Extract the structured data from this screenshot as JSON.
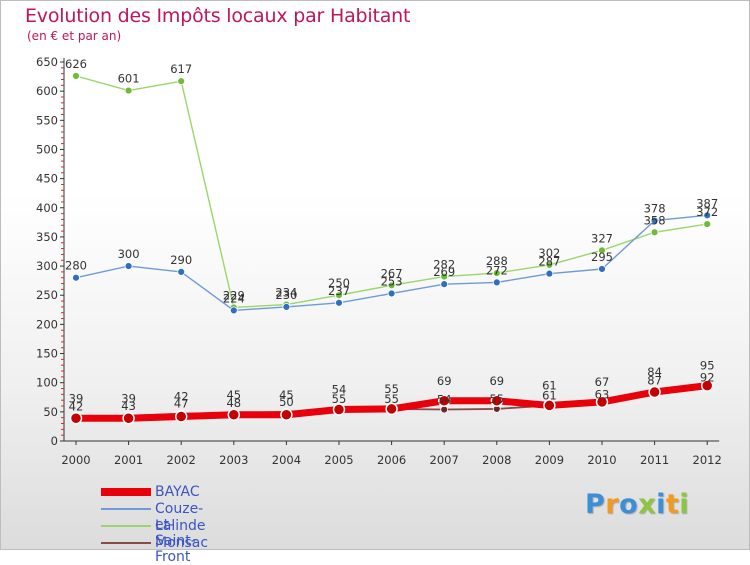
{
  "title": "Evolution des Impôts locaux par Habitant",
  "subtitle": "(en € et par an)",
  "logo": {
    "text": "Proxiti",
    "letters": [
      {
        "ch": "P",
        "color": "#3a8fd6"
      },
      {
        "ch": "r",
        "color": "#f29a1f"
      },
      {
        "ch": "o",
        "color": "#3a8fd6"
      },
      {
        "ch": "x",
        "color": "#8cc63f"
      },
      {
        "ch": "i",
        "color": "#3a8fd6"
      },
      {
        "ch": "t",
        "color": "#f29a1f"
      },
      {
        "ch": "i",
        "color": "#8cc63f"
      }
    ]
  },
  "chart_data": {
    "type": "line",
    "title": "Evolution des Impôts locaux par Habitant",
    "subtitle": "(en € et par an)",
    "xlabel": "",
    "ylabel": "",
    "x": [
      "2000",
      "2001",
      "2002",
      "2003",
      "2004",
      "2005",
      "2006",
      "2007",
      "2008",
      "2009",
      "2010",
      "2011",
      "2012"
    ],
    "yticks": [
      0,
      50,
      100,
      150,
      200,
      250,
      300,
      350,
      400,
      450,
      500,
      550,
      600,
      650
    ],
    "ylim": [
      0,
      650
    ],
    "grid": false,
    "legend_position": "bottom-left",
    "series": [
      {
        "name": "BAYAC",
        "color": "#e8000b",
        "marker": "#c40000",
        "values": [
          39,
          39,
          42,
          45,
          45,
          54,
          55,
          69,
          69,
          61,
          67,
          84,
          95
        ],
        "labels": [
          "39",
          "39",
          "42",
          "45",
          "45",
          "54",
          "55",
          "69",
          "69",
          "61",
          "67",
          "84",
          "95"
        ]
      },
      {
        "name": "Couze-et-Saint-Front",
        "color": "#6e9bd6",
        "marker": "#2f6fbf",
        "values": [
          280,
          300,
          290,
          224,
          230,
          237,
          253,
          269,
          272,
          287,
          295,
          378,
          387
        ],
        "labels": [
          "280",
          "300",
          "290",
          "224",
          "230",
          "237",
          "253",
          "269",
          "272",
          "287",
          "295",
          "378",
          "387"
        ]
      },
      {
        "name": "Lalinde",
        "color": "#9ad66b",
        "marker": "#6dbb38",
        "values": [
          626,
          601,
          617,
          229,
          234,
          250,
          267,
          282,
          288,
          302,
          327,
          358,
          372
        ],
        "labels": [
          "626",
          "601",
          "617",
          "229",
          "234",
          "250",
          "267",
          "282",
          "288",
          "302",
          "327",
          "358",
          "372"
        ]
      },
      {
        "name": "Monsac",
        "color": "#8b4a4a",
        "marker": "#6b2a2a",
        "values": [
          42,
          43,
          47,
          48,
          50,
          55,
          55,
          54,
          55,
          61,
          63,
          87,
          92
        ],
        "labels": [
          "42",
          "43",
          "47",
          "48",
          "50",
          "55",
          "55",
          "54",
          "55",
          "61",
          "63",
          "87",
          "92"
        ]
      }
    ]
  }
}
